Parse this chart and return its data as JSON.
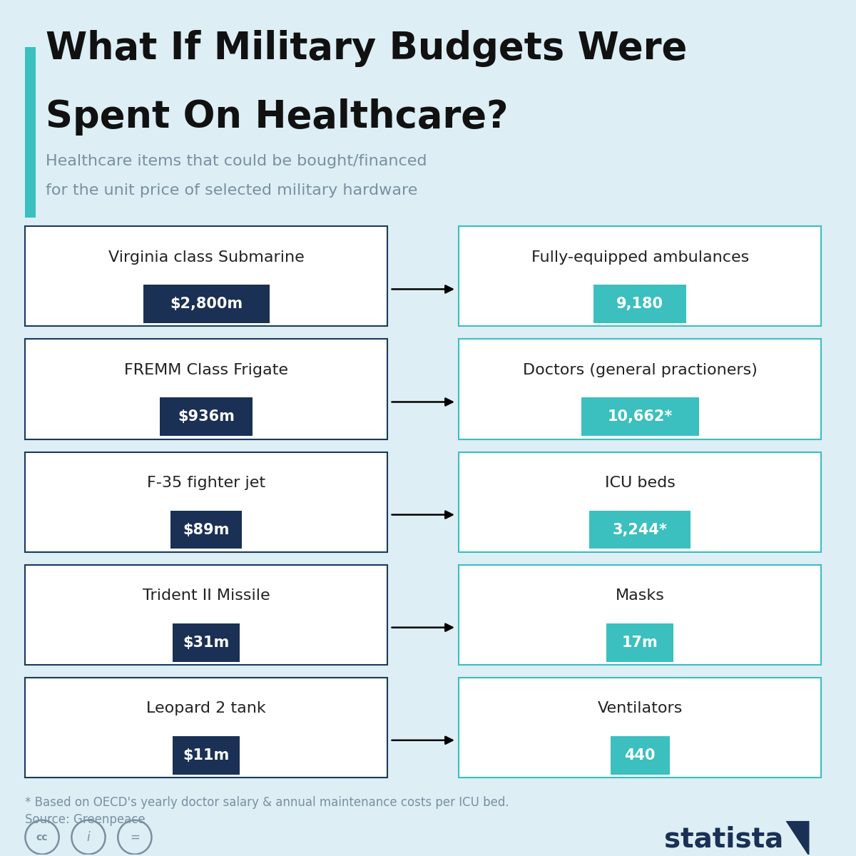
{
  "title_line1": "What If Military Budgets Were",
  "title_line2": "Spent On Healthcare?",
  "subtitle_line1": "Healthcare items that could be bought/financed",
  "subtitle_line2": "for the unit price of selected military hardware",
  "bg_color": "#ddeef5",
  "left_box_bg": "#ffffff",
  "left_box_border": "#1a3a5c",
  "right_box_bg": "#ffffff",
  "right_box_border": "#3bbfbf",
  "dark_badge_color": "#1a3055",
  "teal_badge_color": "#3bbfbf",
  "teal_accent": "#3bbfbf",
  "title_color": "#111111",
  "subtitle_color": "#7a8fa0",
  "footnote_color": "#7a8fa0",
  "rows": [
    {
      "military_name": "Virginia class Submarine",
      "military_cost": "$2,800m",
      "health_name": "Fully-equipped ambulances",
      "health_value": "9,180"
    },
    {
      "military_name": "FREMM Class Frigate",
      "military_cost": "$936m",
      "health_name": "Doctors (general practioners)",
      "health_value": "10,662*"
    },
    {
      "military_name": "F-35 fighter jet",
      "military_cost": "$89m",
      "health_name": "ICU beds",
      "health_value": "3,244*"
    },
    {
      "military_name": "Trident II Missile",
      "military_cost": "$31m",
      "health_name": "Masks",
      "health_value": "17m"
    },
    {
      "military_name": "Leopard 2 tank",
      "military_cost": "$11m",
      "health_name": "Ventilators",
      "health_value": "440"
    }
  ],
  "footnote1": "* Based on OECD's yearly doctor salary & annual maintenance costs per ICU bed.",
  "footnote2": "Source: Greenpeace",
  "badge_widths": {
    "9,180": 1.1,
    "10,662*": 1.4,
    "3,244*": 1.2,
    "17m": 0.8,
    "440": 0.7,
    "$2,800m": 1.5,
    "$936m": 1.1,
    "$89m": 0.85,
    "$31m": 0.8,
    "$11m": 0.8
  }
}
